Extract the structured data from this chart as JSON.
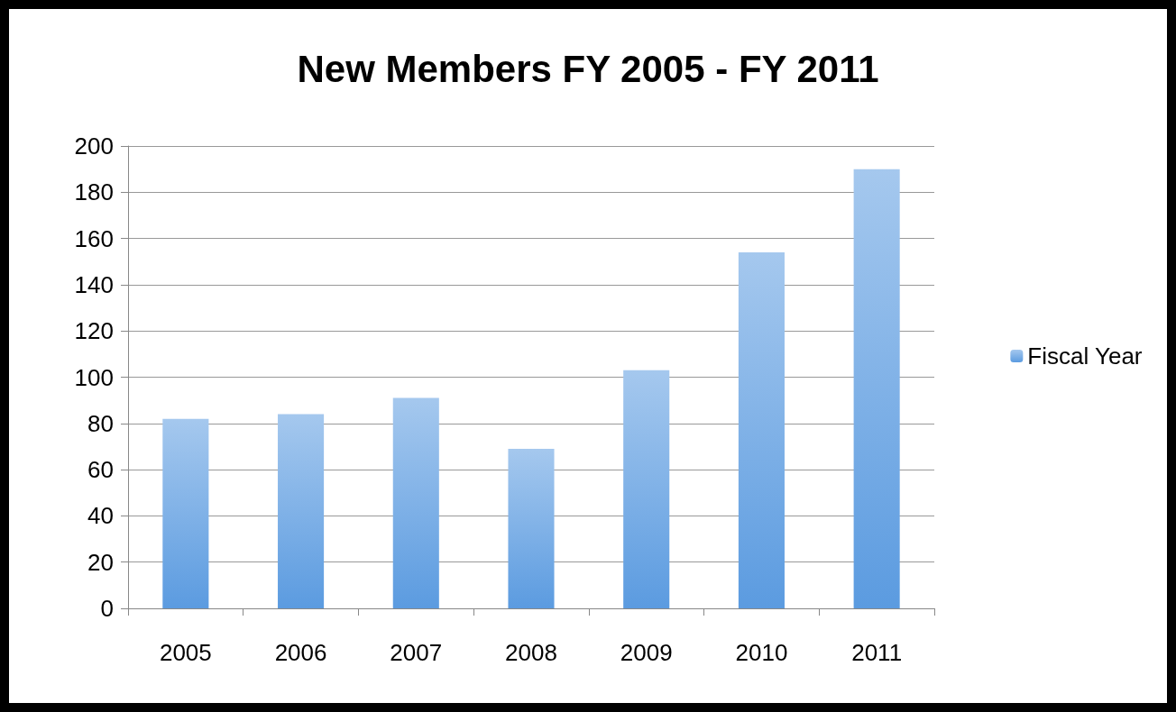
{
  "chart_data": {
    "type": "bar",
    "title": "New Members FY 2005 - FY 2011",
    "categories": [
      "2005",
      "2006",
      "2007",
      "2008",
      "2009",
      "2010",
      "2011"
    ],
    "series": [
      {
        "name": "Fiscal Year",
        "color": "#5b9be0",
        "values": [
          82,
          84,
          91,
          69,
          103,
          154,
          190
        ]
      }
    ],
    "ylim": [
      0,
      200
    ],
    "yticks": [
      0,
      20,
      40,
      60,
      80,
      100,
      120,
      140,
      160,
      180,
      200
    ],
    "grid": "y",
    "legend": "right"
  }
}
